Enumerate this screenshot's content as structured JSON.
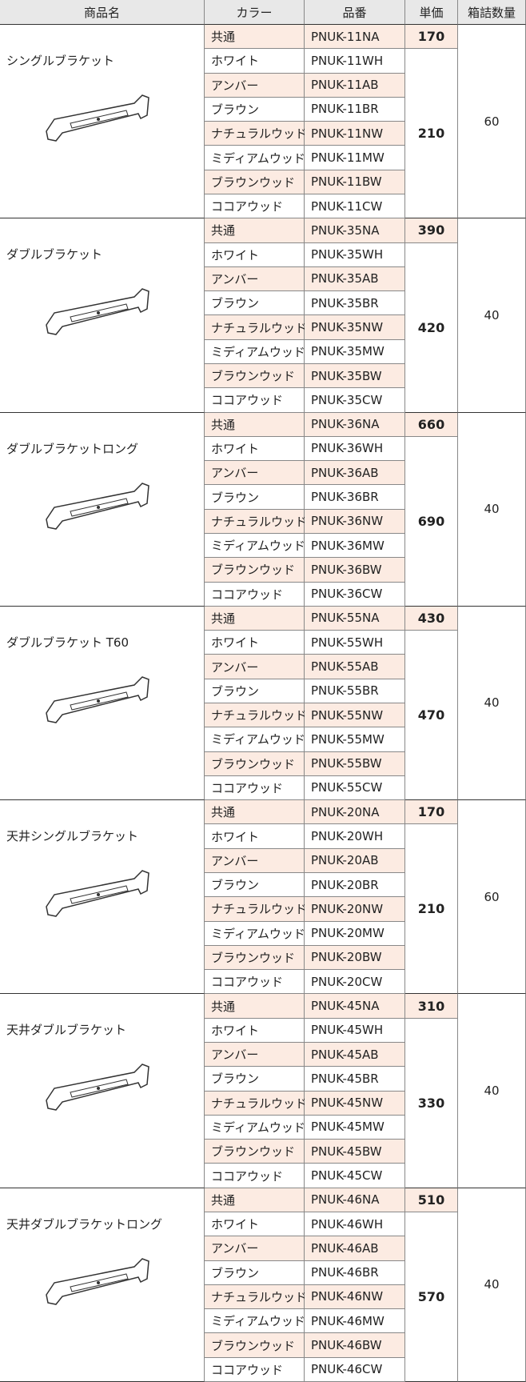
{
  "header": [
    "商品名",
    "カラー",
    "品番",
    "単価",
    "箱詰数量"
  ],
  "groups": [
    {
      "name": "シングルブラケット",
      "parts": [
        "PNUK-11NA",
        "PNUK-11WH",
        "PNUK-11AB",
        "PNUK-11BR",
        "PNUK-11NW",
        "PNUK-11MW",
        "PNUK-11BW",
        "PNUK-11CW"
      ],
      "colors": [
        "共通",
        "ホワイト",
        "アンバー",
        "ブラウン",
        "ナチュラルウッド",
        "ミディアムウッド",
        "ブラウンウッド",
        "ココアウッド"
      ],
      "price_common": 170,
      "price": 210,
      "quantity": 60
    },
    {
      "name": "ダブルブラケット",
      "parts": [
        "PNUK-35NA",
        "PNUK-35WH",
        "PNUK-35AB",
        "PNUK-35BR",
        "PNUK-35NW",
        "PNUK-35MW",
        "PNUK-35BW",
        "PNUK-35CW"
      ],
      "colors": [
        "共通",
        "ホワイト",
        "アンバー",
        "ブラウン",
        "ナチュラルウッド",
        "ミディアムウッド",
        "ブラウンウッド",
        "ココアウッド"
      ],
      "price_common": 390,
      "price": 420,
      "quantity": 40
    },
    {
      "name": "ダブルブラケットロング",
      "parts": [
        "PNUK-36NA",
        "PNUK-36WH",
        "PNUK-36AB",
        "PNUK-36BR",
        "PNUK-36NW",
        "PNUK-36MW",
        "PNUK-36BW",
        "PNUK-36CW"
      ],
      "colors": [
        "共通",
        "ホワイト",
        "アンバー",
        "ブラウン",
        "ナチュラルウッド",
        "ミディアムウッド",
        "ブラウンウッド",
        "ココアウッド"
      ],
      "price_common": 660,
      "price": 690,
      "quantity": 40
    },
    {
      "name": "ダブルブラケット T60",
      "parts": [
        "PNUK-55NA",
        "PNUK-55WH",
        "PNUK-55AB",
        "PNUK-55BR",
        "PNUK-55NW",
        "PNUK-55MW",
        "PNUK-55BW",
        "PNUK-55CW"
      ],
      "colors": [
        "共通",
        "ホワイト",
        "アンバー",
        "ブラウン",
        "ナチュラルウッド",
        "ミディアムウッド",
        "ブラウンウッド",
        "ココアウッド"
      ],
      "price_common": 430,
      "price": 470,
      "quantity": 40
    },
    {
      "name": "天井シングルブラケット",
      "parts": [
        "PNUK-20NA",
        "PNUK-20WH",
        "PNUK-20AB",
        "PNUK-20BR",
        "PNUK-20NW",
        "PNUK-20MW",
        "PNUK-20BW",
        "PNUK-20CW"
      ],
      "colors": [
        "共通",
        "ホワイト",
        "アンバー",
        "ブラウン",
        "ナチュラルウッド",
        "ミディアムウッド",
        "ブラウンウッド",
        "ココアウッド"
      ],
      "price_common": 170,
      "price": 210,
      "quantity": 60
    },
    {
      "name": "天井ダブルブラケット",
      "parts": [
        "PNUK-45NA",
        "PNUK-45WH",
        "PNUK-45AB",
        "PNUK-45BR",
        "PNUK-45NW",
        "PNUK-45MW",
        "PNUK-45BW",
        "PNUK-45CW"
      ],
      "colors": [
        "共通",
        "ホワイト",
        "アンバー",
        "ブラウン",
        "ナチュラルウッド",
        "ミディアムウッド",
        "ブラウンウッド",
        "ココアウッド"
      ],
      "price_common": 310,
      "price": 330,
      "quantity": 40
    },
    {
      "name": "天井ダブルブラケットロング",
      "parts": [
        "PNUK-46NA",
        "PNUK-46WH",
        "PNUK-46AB",
        "PNUK-46BR",
        "PNUK-46NW",
        "PNUK-46MW",
        "PNUK-46BW",
        "PNUK-46CW"
      ],
      "colors": [
        "共通",
        "ホワイト",
        "アンバー",
        "ブラウン",
        "ナチュラルウッド",
        "ミディアムウッド",
        "ブラウンウッド",
        "ココアウッド"
      ],
      "price_common": 510,
      "price": 570,
      "quantity": 40
    }
  ]
}
